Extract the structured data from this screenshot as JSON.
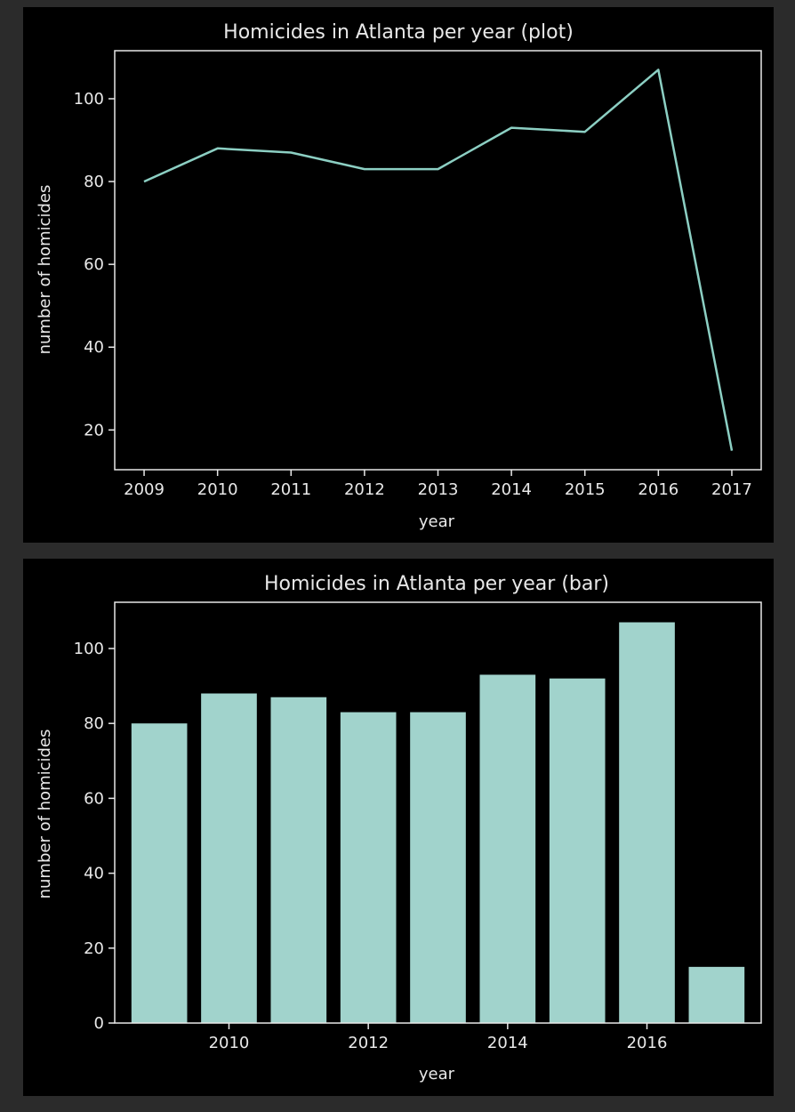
{
  "colors": {
    "page_background": "#2b2b2b",
    "panel_background": "#000000",
    "axis": "#e8e8e8",
    "series": "#8ccfc3",
    "bar_fill": "#a1d3cc"
  },
  "chart_data": [
    {
      "type": "line",
      "title": "Homicides in Atlanta per year (plot)",
      "xlabel": "year",
      "ylabel": "number of homicides",
      "x": [
        2009,
        2010,
        2011,
        2012,
        2013,
        2014,
        2015,
        2016,
        2017
      ],
      "y": [
        80,
        88,
        87,
        83,
        83,
        93,
        92,
        107,
        15
      ],
      "xticks": [
        2009,
        2010,
        2011,
        2012,
        2013,
        2014,
        2015,
        2016,
        2017
      ],
      "yticks": [
        20,
        40,
        60,
        80,
        100
      ],
      "xlim": [
        2008.6,
        2017.4
      ],
      "ylim": [
        10.4,
        111.6
      ],
      "grid": false,
      "legend": "none"
    },
    {
      "type": "bar",
      "title": "Homicides in Atlanta per year (bar)",
      "xlabel": "year",
      "ylabel": "number of homicides",
      "categories": [
        2009,
        2010,
        2011,
        2012,
        2013,
        2014,
        2015,
        2016,
        2017
      ],
      "values": [
        80,
        88,
        87,
        83,
        83,
        93,
        92,
        107,
        15
      ],
      "bar_width": 0.8,
      "xticks": [
        2010,
        2012,
        2014,
        2016
      ],
      "yticks": [
        0,
        20,
        40,
        60,
        80,
        100
      ],
      "xlim": [
        2008.36,
        2017.64
      ],
      "ylim": [
        0,
        112.35
      ],
      "grid": false,
      "legend": "none"
    }
  ]
}
